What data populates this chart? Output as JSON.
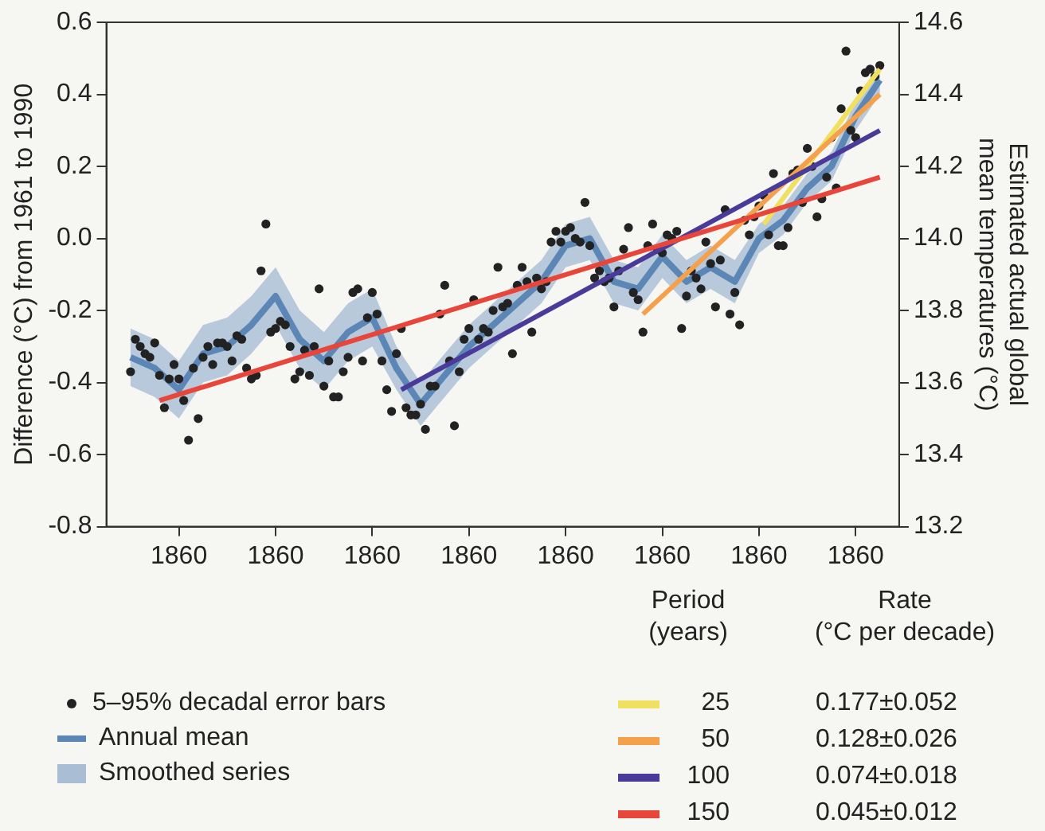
{
  "chart_data": {
    "type": "scatter",
    "ylabel": "Difference (°C) from 1961 to 1990",
    "y2label": "Estimated actual global mean temperatures (°C)",
    "legend_title": "Period (years)",
    "annotations": [
      "Smoothed series",
      "Rate (°C per decade)",
      "0.177±0.052",
      "0.128±0.026",
      "0.074±0.018",
      "0.045±0.012"
    ],
    "categories": [
      null,
      null,
      null,
      null,
      null,
      null,
      null,
      null,
      null,
      null,
      "1860",
      null,
      null,
      null,
      null,
      null,
      null,
      null,
      null,
      null,
      null,
      null,
      null,
      null,
      null,
      null,
      null,
      null,
      null,
      null,
      "1860",
      null,
      null,
      null,
      null,
      null,
      null,
      null,
      null,
      null,
      null,
      null,
      null,
      null,
      null,
      null,
      null,
      null,
      null,
      null,
      "1860",
      null,
      null,
      null,
      null,
      null,
      null,
      null,
      null,
      null,
      null,
      null,
      null,
      null,
      null,
      null,
      null,
      null,
      null,
      null,
      "1860",
      null,
      null,
      null,
      null,
      null,
      null,
      null,
      null,
      null,
      null,
      null,
      null,
      null,
      null,
      null,
      null,
      null,
      null,
      null,
      "1860",
      null,
      null,
      null,
      null,
      null,
      null,
      null,
      null,
      null,
      null,
      null,
      null,
      null,
      null,
      null,
      null,
      null,
      null,
      null,
      "1860",
      null,
      null,
      null,
      null,
      null,
      null,
      null,
      null,
      null,
      null,
      null,
      null,
      null,
      null,
      null,
      null,
      null,
      null,
      null,
      "1860",
      null,
      null,
      null,
      null,
      null,
      null,
      null,
      null,
      null,
      null,
      null,
      null,
      null,
      null,
      null,
      null,
      null,
      null,
      null,
      "1860",
      null,
      null,
      null,
      null,
      null
    ],
    "ylim": [
      -0.8,
      0.6
    ],
    "yticks": [
      -0.8,
      -0.6,
      -0.4,
      -0.2,
      {
        "value": 0,
        "label": "0.0"
      },
      0.2,
      0.4,
      0.6
    ],
    "y2lim": [
      13.2,
      14.6
    ],
    "y2ticks": [
      13.2,
      13.4,
      13.6,
      13.8,
      {
        "value": 14,
        "label": "14.0"
      },
      14.2,
      14.4,
      14.6
    ],
    "legend": "bottom",
    "series": [
      {
        "type": "line",
        "name": "Annual mean",
        "color": "#5b86b5",
        "values": [
          -0.33,
          null,
          null,
          null,
          null,
          -0.36,
          null,
          null,
          null,
          null,
          -0.42,
          null,
          null,
          null,
          null,
          -0.32,
          null,
          null,
          null,
          null,
          -0.3,
          null,
          null,
          null,
          null,
          -0.24,
          null,
          null,
          null,
          null,
          -0.16,
          null,
          null,
          null,
          null,
          -0.28,
          null,
          null,
          null,
          null,
          -0.34,
          null,
          null,
          null,
          null,
          -0.26,
          null,
          null,
          null,
          null,
          -0.22,
          null,
          null,
          null,
          null,
          -0.36,
          null,
          null,
          null,
          null,
          -0.46,
          null,
          null,
          null,
          null,
          -0.38,
          null,
          null,
          null,
          null,
          -0.3,
          null,
          null,
          null,
          null,
          -0.24,
          null,
          null,
          null,
          null,
          -0.18,
          null,
          null,
          null,
          null,
          -0.12,
          null,
          null,
          null,
          null,
          -0.02,
          null,
          null,
          null,
          null,
          0.0,
          null,
          null,
          null,
          null,
          -0.12,
          null,
          null,
          null,
          null,
          -0.14,
          null,
          null,
          null,
          null,
          -0.05,
          null,
          null,
          null,
          null,
          -0.12,
          null,
          null,
          null,
          null,
          -0.08,
          null,
          null,
          null,
          null,
          -0.12,
          null,
          null,
          null,
          null,
          0.0,
          null,
          null,
          null,
          null,
          0.05,
          null,
          null,
          null,
          null,
          0.14,
          null,
          null,
          null,
          null,
          0.2,
          null,
          null,
          null,
          null,
          0.34,
          null,
          null,
          null,
          null,
          0.44
        ],
        "lower": [
          -0.41,
          null,
          null,
          null,
          null,
          -0.44,
          null,
          null,
          null,
          null,
          -0.5,
          null,
          null,
          null,
          null,
          -0.4,
          null,
          null,
          null,
          null,
          -0.38,
          null,
          null,
          null,
          null,
          -0.32,
          null,
          null,
          null,
          null,
          -0.24,
          null,
          null,
          null,
          null,
          -0.36,
          null,
          null,
          null,
          null,
          -0.42,
          null,
          null,
          null,
          null,
          -0.34,
          null,
          null,
          null,
          null,
          -0.3,
          null,
          null,
          null,
          null,
          -0.42,
          null,
          null,
          null,
          null,
          -0.52,
          null,
          null,
          null,
          null,
          -0.44,
          null,
          null,
          null,
          null,
          -0.36,
          null,
          null,
          null,
          null,
          -0.3,
          null,
          null,
          null,
          null,
          -0.24,
          null,
          null,
          null,
          null,
          -0.18,
          null,
          null,
          null,
          null,
          -0.08,
          null,
          null,
          null,
          null,
          -0.06,
          null,
          null,
          null,
          null,
          -0.18,
          null,
          null,
          null,
          null,
          -0.2,
          null,
          null,
          null,
          null,
          -0.11,
          null,
          null,
          null,
          null,
          -0.18,
          null,
          null,
          null,
          null,
          -0.14,
          null,
          null,
          null,
          null,
          -0.18,
          null,
          null,
          null,
          null,
          -0.04,
          null,
          null,
          null,
          null,
          0.01,
          null,
          null,
          null,
          null,
          0.1,
          null,
          null,
          null,
          null,
          0.16,
          null,
          null,
          null,
          null,
          0.3,
          null,
          null,
          null,
          null,
          0.4
        ],
        "upper": [
          -0.25,
          null,
          null,
          null,
          null,
          -0.28,
          null,
          null,
          null,
          null,
          -0.34,
          null,
          null,
          null,
          null,
          -0.24,
          null,
          null,
          null,
          null,
          -0.22,
          null,
          null,
          null,
          null,
          -0.16,
          null,
          null,
          null,
          null,
          -0.08,
          null,
          null,
          null,
          null,
          -0.2,
          null,
          null,
          null,
          null,
          -0.26,
          null,
          null,
          null,
          null,
          -0.18,
          null,
          null,
          null,
          null,
          -0.14,
          null,
          null,
          null,
          null,
          -0.3,
          null,
          null,
          null,
          null,
          -0.4,
          null,
          null,
          null,
          null,
          -0.32,
          null,
          null,
          null,
          null,
          -0.24,
          null,
          null,
          null,
          null,
          -0.18,
          null,
          null,
          null,
          null,
          -0.12,
          null,
          null,
          null,
          null,
          -0.06,
          null,
          null,
          null,
          null,
          0.04,
          null,
          null,
          null,
          null,
          0.06,
          null,
          null,
          null,
          null,
          -0.06,
          null,
          null,
          null,
          null,
          -0.08,
          null,
          null,
          null,
          null,
          0.01,
          null,
          null,
          null,
          null,
          -0.06,
          null,
          null,
          null,
          null,
          -0.02,
          null,
          null,
          null,
          null,
          -0.06,
          null,
          null,
          null,
          null,
          0.04,
          null,
          null,
          null,
          null,
          0.09,
          null,
          null,
          null,
          null,
          0.18,
          null,
          null,
          null,
          null,
          0.24,
          null,
          null,
          null,
          null,
          0.38,
          null,
          null,
          null,
          null,
          0.48
        ]
      },
      {
        "name": "5–95% decadal error bars",
        "color": "#222222",
        "marker": "circle",
        "values": [
          -0.37,
          -0.28,
          -0.3,
          -0.32,
          -0.33,
          -0.29,
          -0.38,
          -0.47,
          -0.39,
          -0.35,
          -0.39,
          -0.45,
          -0.56,
          -0.36,
          -0.5,
          -0.33,
          -0.3,
          -0.35,
          -0.29,
          -0.29,
          -0.3,
          -0.34,
          -0.27,
          -0.28,
          -0.36,
          -0.39,
          -0.38,
          -0.09,
          0.04,
          -0.26,
          -0.25,
          -0.23,
          -0.24,
          -0.3,
          -0.39,
          -0.37,
          -0.31,
          -0.38,
          -0.3,
          -0.14,
          -0.41,
          -0.34,
          -0.44,
          -0.44,
          -0.37,
          -0.33,
          -0.15,
          -0.14,
          -0.34,
          -0.22,
          -0.15,
          -0.21,
          -0.34,
          -0.42,
          -0.48,
          -0.32,
          -0.25,
          -0.47,
          -0.49,
          -0.49,
          -0.46,
          -0.53,
          -0.41,
          -0.41,
          -0.21,
          -0.13,
          -0.34,
          -0.52,
          -0.37,
          -0.28,
          -0.25,
          -0.17,
          -0.28,
          -0.25,
          -0.26,
          -0.2,
          -0.08,
          -0.19,
          -0.18,
          -0.32,
          -0.13,
          -0.08,
          -0.12,
          -0.26,
          -0.11,
          -0.14,
          -0.12,
          -0.01,
          0.02,
          -0.01,
          0.02,
          0.03,
          0.0,
          -0.01,
          0.1,
          -0.02,
          -0.11,
          -0.09,
          -0.12,
          -0.11,
          -0.19,
          -0.09,
          -0.03,
          0.03,
          -0.15,
          -0.17,
          -0.26,
          -0.02,
          0.04,
          -0.03,
          -0.04,
          0.01,
          0.0,
          0.02,
          -0.25,
          -0.16,
          -0.09,
          -0.11,
          -0.14,
          -0.01,
          -0.07,
          -0.19,
          -0.06,
          0.08,
          -0.21,
          -0.15,
          -0.24,
          0.05,
          0.01,
          0.06,
          0.09,
          0.12,
          0.01,
          0.18,
          -0.02,
          -0.02,
          0.03,
          0.18,
          0.19,
          0.1,
          0.25,
          0.2,
          0.06,
          0.11,
          0.17,
          0.28,
          0.14,
          0.36,
          0.52,
          0.3,
          0.28,
          0.41,
          0.46,
          0.47,
          0.45,
          0.48
        ]
      },
      {
        "type": "line",
        "name": "150",
        "color": "#e8463a",
        "values": [
          null,
          null,
          null,
          null,
          null,
          null,
          -0.45,
          null,
          null,
          null,
          null,
          null,
          null,
          null,
          null,
          null,
          null,
          null,
          null,
          null,
          null,
          null,
          null,
          null,
          null,
          null,
          null,
          null,
          null,
          null,
          null,
          null,
          null,
          null,
          null,
          null,
          null,
          null,
          null,
          null,
          null,
          null,
          null,
          null,
          null,
          null,
          null,
          null,
          null,
          null,
          null,
          null,
          null,
          null,
          null,
          null,
          null,
          null,
          null,
          null,
          null,
          null,
          null,
          null,
          null,
          null,
          null,
          null,
          null,
          null,
          null,
          null,
          null,
          null,
          null,
          null,
          null,
          null,
          null,
          null,
          null,
          null,
          null,
          null,
          null,
          null,
          null,
          null,
          null,
          null,
          null,
          null,
          null,
          null,
          null,
          null,
          null,
          null,
          null,
          null,
          null,
          null,
          null,
          null,
          null,
          null,
          null,
          null,
          null,
          null,
          null,
          null,
          null,
          null,
          null,
          null,
          null,
          null,
          null,
          null,
          null,
          null,
          null,
          null,
          null,
          null,
          null,
          null,
          null,
          null,
          null,
          null,
          null,
          null,
          null,
          null,
          null,
          null,
          null,
          null,
          null,
          null,
          null,
          null,
          null,
          null,
          null,
          null,
          null,
          null,
          null,
          null,
          null,
          null,
          null,
          0.17
        ]
      },
      {
        "type": "line",
        "name": "100",
        "color": "#4a3a9a",
        "values": [
          null,
          null,
          null,
          null,
          null,
          null,
          null,
          null,
          null,
          null,
          null,
          null,
          null,
          null,
          null,
          null,
          null,
          null,
          null,
          null,
          null,
          null,
          null,
          null,
          null,
          null,
          null,
          null,
          null,
          null,
          null,
          null,
          null,
          null,
          null,
          null,
          null,
          null,
          null,
          null,
          null,
          null,
          null,
          null,
          null,
          null,
          null,
          null,
          null,
          null,
          null,
          null,
          null,
          null,
          null,
          null,
          -0.42,
          null,
          null,
          null,
          null,
          null,
          null,
          null,
          null,
          null,
          null,
          null,
          null,
          null,
          null,
          null,
          null,
          null,
          null,
          null,
          null,
          null,
          null,
          null,
          null,
          null,
          null,
          null,
          null,
          null,
          null,
          null,
          null,
          null,
          null,
          null,
          null,
          null,
          null,
          null,
          null,
          null,
          null,
          null,
          null,
          null,
          null,
          null,
          null,
          null,
          null,
          null,
          null,
          null,
          null,
          null,
          null,
          null,
          null,
          null,
          null,
          null,
          null,
          null,
          null,
          null,
          null,
          null,
          null,
          null,
          null,
          null,
          null,
          null,
          null,
          null,
          null,
          null,
          null,
          null,
          null,
          null,
          null,
          null,
          null,
          null,
          null,
          null,
          null,
          null,
          null,
          null,
          null,
          null,
          null,
          null,
          null,
          null,
          null,
          0.3
        ]
      },
      {
        "type": "line",
        "name": "50",
        "color": "#f5a04a",
        "values": [
          null,
          null,
          null,
          null,
          null,
          null,
          null,
          null,
          null,
          null,
          null,
          null,
          null,
          null,
          null,
          null,
          null,
          null,
          null,
          null,
          null,
          null,
          null,
          null,
          null,
          null,
          null,
          null,
          null,
          null,
          null,
          null,
          null,
          null,
          null,
          null,
          null,
          null,
          null,
          null,
          null,
          null,
          null,
          null,
          null,
          null,
          null,
          null,
          null,
          null,
          null,
          null,
          null,
          null,
          null,
          null,
          null,
          null,
          null,
          null,
          null,
          null,
          null,
          null,
          null,
          null,
          null,
          null,
          null,
          null,
          null,
          null,
          null,
          null,
          null,
          null,
          null,
          null,
          null,
          null,
          null,
          null,
          null,
          null,
          null,
          null,
          null,
          null,
          null,
          null,
          null,
          null,
          null,
          null,
          null,
          null,
          null,
          null,
          null,
          null,
          null,
          null,
          null,
          null,
          null,
          null,
          -0.21,
          null,
          null,
          null,
          null,
          null,
          null,
          null,
          null,
          null,
          null,
          null,
          null,
          null,
          null,
          null,
          null,
          null,
          null,
          null,
          null,
          null,
          null,
          null,
          null,
          null,
          null,
          null,
          null,
          null,
          null,
          null,
          null,
          null,
          null,
          null,
          null,
          null,
          null,
          null,
          null,
          null,
          null,
          null,
          null,
          null,
          null,
          null,
          null,
          0.4
        ]
      },
      {
        "type": "line",
        "name": "25",
        "color": "#f0e060",
        "values": [
          null,
          null,
          null,
          null,
          null,
          null,
          null,
          null,
          null,
          null,
          null,
          null,
          null,
          null,
          null,
          null,
          null,
          null,
          null,
          null,
          null,
          null,
          null,
          null,
          null,
          null,
          null,
          null,
          null,
          null,
          null,
          null,
          null,
          null,
          null,
          null,
          null,
          null,
          null,
          null,
          null,
          null,
          null,
          null,
          null,
          null,
          null,
          null,
          null,
          null,
          null,
          null,
          null,
          null,
          null,
          null,
          null,
          null,
          null,
          null,
          null,
          null,
          null,
          null,
          null,
          null,
          null,
          null,
          null,
          null,
          null,
          null,
          null,
          null,
          null,
          null,
          null,
          null,
          null,
          null,
          null,
          null,
          null,
          null,
          null,
          null,
          null,
          null,
          null,
          null,
          null,
          null,
          null,
          null,
          null,
          null,
          null,
          null,
          null,
          null,
          null,
          null,
          null,
          null,
          null,
          null,
          null,
          null,
          null,
          null,
          null,
          null,
          null,
          null,
          null,
          null,
          null,
          null,
          null,
          null,
          null,
          null,
          null,
          null,
          null,
          null,
          null,
          null,
          null,
          null,
          null,
          0.04,
          null,
          null,
          null,
          null,
          null,
          null,
          null,
          null,
          null,
          null,
          null,
          null,
          null,
          null,
          null,
          null,
          null,
          null,
          null,
          null,
          null,
          null,
          null,
          0.47
        ]
      }
    ]
  }
}
